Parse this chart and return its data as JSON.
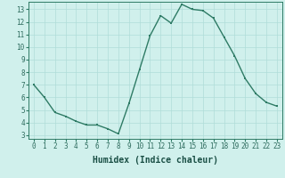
{
  "x": [
    0,
    1,
    2,
    3,
    4,
    5,
    6,
    7,
    8,
    9,
    10,
    11,
    12,
    13,
    14,
    15,
    16,
    17,
    18,
    19,
    20,
    21,
    22,
    23
  ],
  "y": [
    7.0,
    6.0,
    4.8,
    4.5,
    4.1,
    3.8,
    3.8,
    3.5,
    3.1,
    5.5,
    8.2,
    10.9,
    12.5,
    11.9,
    13.4,
    13.0,
    12.9,
    12.3,
    10.8,
    9.3,
    7.5,
    6.3,
    5.6,
    5.3
  ],
  "line_color": "#2e7b65",
  "marker_color": "#2e7b65",
  "bg_color": "#d0f0ec",
  "grid_color": "#b0ddd8",
  "xlabel": "Humidex (Indice chaleur)",
  "xlim": [
    -0.5,
    23.5
  ],
  "ylim": [
    2.7,
    13.6
  ],
  "yticks": [
    3,
    4,
    5,
    6,
    7,
    8,
    9,
    10,
    11,
    12,
    13
  ],
  "xticks": [
    0,
    1,
    2,
    3,
    4,
    5,
    6,
    7,
    8,
    9,
    10,
    11,
    12,
    13,
    14,
    15,
    16,
    17,
    18,
    19,
    20,
    21,
    22,
    23
  ],
  "tick_label_fontsize": 5.5,
  "xlabel_fontsize": 7,
  "marker_size": 2.0,
  "line_width": 1.0
}
